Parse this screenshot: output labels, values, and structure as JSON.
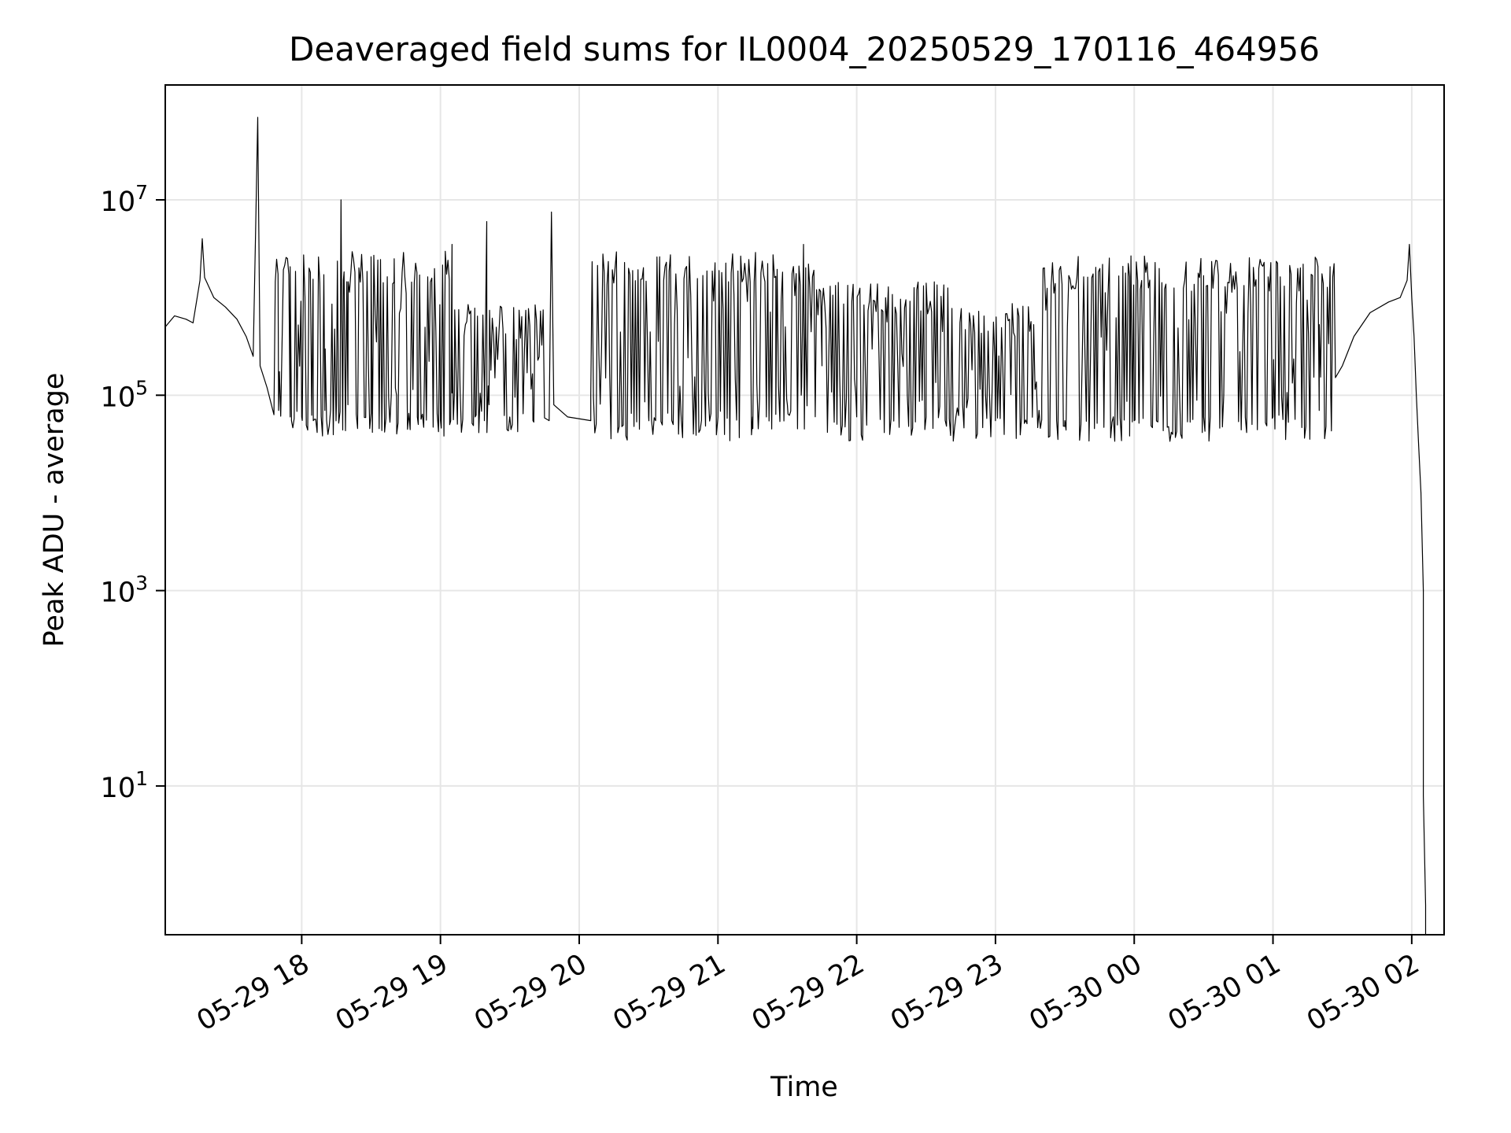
{
  "chart_data": {
    "type": "line",
    "title": "Deaveraged field sums for IL0004_20250529_170116_464956",
    "xlabel": "Time",
    "ylabel": "Peak ADU - average",
    "yscale": "log",
    "grid": true,
    "line_color": "#000000",
    "x_range": [
      "2025-05-29 17:01",
      "2025-05-30 02:14"
    ],
    "y_range": [
      0.3,
      150000000
    ],
    "x_ticks": [
      {
        "value": "2025-05-29 18:00",
        "label": "05-29 18"
      },
      {
        "value": "2025-05-29 19:00",
        "label": "05-29 19"
      },
      {
        "value": "2025-05-29 20:00",
        "label": "05-29 20"
      },
      {
        "value": "2025-05-29 21:00",
        "label": "05-29 21"
      },
      {
        "value": "2025-05-29 22:00",
        "label": "05-29 22"
      },
      {
        "value": "2025-05-29 23:00",
        "label": "05-29 23"
      },
      {
        "value": "2025-05-30 00:00",
        "label": "05-30 00"
      },
      {
        "value": "2025-05-30 01:00",
        "label": "05-30 01"
      },
      {
        "value": "2025-05-30 02:00",
        "label": "05-30 02"
      }
    ],
    "y_ticks": [
      {
        "value": 10,
        "base": "10",
        "exp": "1"
      },
      {
        "value": 1000,
        "base": "10",
        "exp": "3"
      },
      {
        "value": 100000,
        "base": "10",
        "exp": "5"
      },
      {
        "value": 10000000,
        "base": "10",
        "exp": "7"
      }
    ],
    "series": [
      {
        "points": [
          [
            "2025-05-29 17:01",
            500000
          ],
          [
            "2025-05-29 17:05",
            650000
          ],
          [
            "2025-05-29 17:10",
            600000
          ],
          [
            "2025-05-29 17:13",
            550000
          ],
          [
            "2025-05-29 17:16",
            1500000
          ],
          [
            "2025-05-29 17:17",
            4000000
          ],
          [
            "2025-05-29 17:18",
            1600000
          ],
          [
            "2025-05-29 17:22",
            1000000
          ],
          [
            "2025-05-29 17:27",
            800000
          ],
          [
            "2025-05-29 17:32",
            600000
          ],
          [
            "2025-05-29 17:36",
            400000
          ],
          [
            "2025-05-29 17:39",
            250000
          ],
          [
            "2025-05-29 17:40",
            4000000
          ],
          [
            "2025-05-29 17:41",
            70000000
          ],
          [
            "2025-05-29 17:42",
            200000
          ],
          [
            "2025-05-29 17:45",
            120000
          ],
          [
            "2025-05-29 17:50",
            70000
          ],
          [
            "2025-05-29 17:55",
            60000
          ],
          [
            "2025-05-29 18:00",
            60000
          ],
          [
            "2025-05-29 18:05",
            55000
          ],
          [
            "2025-05-29 18:10",
            70000
          ],
          [
            "2025-05-29 18:15",
            80000
          ],
          [
            "2025-05-29 18:17",
            10000000
          ],
          [
            "2025-05-29 18:18",
            1500000
          ],
          [
            "2025-05-29 18:20",
            80000
          ],
          [
            "2025-05-29 18:30",
            65000
          ],
          [
            "2025-05-29 18:38",
            60000
          ],
          [
            "2025-05-29 18:40",
            2500000
          ],
          [
            "2025-05-29 18:41",
            100000
          ],
          [
            "2025-05-29 18:50",
            60000
          ],
          [
            "2025-05-29 19:00",
            55000
          ],
          [
            "2025-05-29 19:04",
            50000
          ],
          [
            "2025-05-29 19:05",
            3500000
          ],
          [
            "2025-05-29 19:06",
            100000
          ],
          [
            "2025-05-29 19:15",
            60000
          ],
          [
            "2025-05-29 19:19",
            55000
          ],
          [
            "2025-05-29 19:20",
            6000000
          ],
          [
            "2025-05-29 19:21",
            80000
          ],
          [
            "2025-05-29 19:30",
            60000
          ],
          [
            "2025-05-29 19:40",
            55000
          ],
          [
            "2025-05-29 19:47",
            55000
          ],
          [
            "2025-05-29 19:48",
            7500000
          ],
          [
            "2025-05-29 19:49",
            80000
          ],
          [
            "2025-05-29 19:55",
            60000
          ],
          [
            "2025-05-29 20:05",
            55000
          ],
          [
            "2025-05-29 20:30",
            60000
          ],
          [
            "2025-05-29 21:00",
            60000
          ],
          [
            "2025-05-29 21:15",
            60000
          ],
          [
            "2025-05-29 21:30",
            80000
          ],
          [
            "2025-05-29 21:36",
            100000
          ],
          [
            "2025-05-29 21:37",
            3500000
          ],
          [
            "2025-05-29 21:38",
            400000
          ],
          [
            "2025-05-29 21:45",
            200000
          ],
          [
            "2025-05-29 21:50",
            100000
          ],
          [
            "2025-05-29 22:00",
            60000
          ],
          [
            "2025-05-29 22:30",
            60000
          ],
          [
            "2025-05-29 23:00",
            55000
          ],
          [
            "2025-05-29 23:30",
            55000
          ],
          [
            "2025-05-30 00:00",
            55000
          ],
          [
            "2025-05-30 00:30",
            60000
          ],
          [
            "2025-05-30 01:00",
            60000
          ],
          [
            "2025-05-30 01:20",
            70000
          ],
          [
            "2025-05-30 01:25",
            100000
          ],
          [
            "2025-05-30 01:30",
            200000
          ],
          [
            "2025-05-30 01:35",
            400000
          ],
          [
            "2025-05-30 01:42",
            700000
          ],
          [
            "2025-05-30 01:50",
            900000
          ],
          [
            "2025-05-30 01:55",
            1000000
          ],
          [
            "2025-05-30 01:58",
            1500000
          ],
          [
            "2025-05-30 01:59",
            3500000
          ],
          [
            "2025-05-30 02:00",
            1000000
          ],
          [
            "2025-05-30 02:01",
            400000
          ],
          [
            "2025-05-30 02:02",
            100000
          ],
          [
            "2025-05-30 02:03",
            30000
          ],
          [
            "2025-05-30 02:04",
            10000
          ],
          [
            "2025-05-30 02:05",
            1000
          ],
          [
            "2025-05-30 02:05",
            8
          ],
          [
            "2025-05-30 02:06",
            0.6
          ]
        ],
        "oscillation_bands": [
          {
            "start": "2025-05-29 17:48",
            "end": "2025-05-29 19:05",
            "high": 2000000,
            "low": 50000
          },
          {
            "start": "2025-05-29 19:05",
            "end": "2025-05-29 19:45",
            "high": 600000,
            "low": 55000
          },
          {
            "start": "2025-05-29 20:05",
            "end": "2025-05-29 21:25",
            "high": 2000000,
            "low": 45000
          },
          {
            "start": "2025-05-29 21:25",
            "end": "2025-05-29 21:45",
            "high": 1500000,
            "low": 60000
          },
          {
            "start": "2025-05-29 21:45",
            "end": "2025-05-29 22:40",
            "high": 1000000,
            "low": 45000
          },
          {
            "start": "2025-05-29 22:40",
            "end": "2025-05-29 23:20",
            "high": 600000,
            "low": 45000
          },
          {
            "start": "2025-05-29 23:20",
            "end": "2025-05-29 23:58",
            "high": 1800000,
            "low": 45000
          },
          {
            "start": "2025-05-29 23:58",
            "end": "2025-05-30 01:27",
            "high": 1800000,
            "low": 45000
          }
        ]
      }
    ]
  }
}
